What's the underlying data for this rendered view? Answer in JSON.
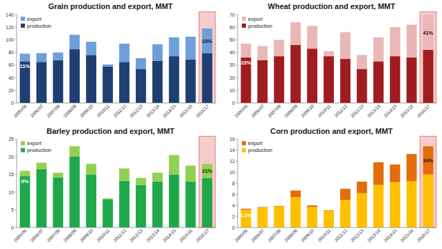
{
  "chart_data": [
    {
      "type": "bar",
      "title": "Grain production and export, MMT",
      "stacked": true,
      "grid": false,
      "legend": "top-left",
      "categories": [
        "2005/06",
        "2006/07",
        "2007/08",
        "2008/09",
        "2009/10",
        "2010/11",
        "2011/12",
        "2012/13",
        "2013/14",
        "2014/15",
        "2015/16",
        "2016/17"
      ],
      "series": [
        {
          "name": "production",
          "color": "#1f3f73",
          "values": [
            66,
            65,
            68,
            85,
            76,
            58,
            65,
            54,
            67,
            74,
            69,
            79
          ]
        },
        {
          "name": "export",
          "color": "#6e9fd8",
          "values": [
            12,
            14,
            12,
            23,
            21,
            3,
            29,
            17,
            26,
            30,
            36,
            39
          ]
        }
      ],
      "ylim": [
        0,
        140
      ],
      "yticks": [
        0,
        20,
        40,
        60,
        80,
        100,
        120,
        140
      ],
      "annotations": [
        {
          "text": "11%",
          "x": "2005/06"
        },
        {
          "text": "33%",
          "x": "2016/17"
        }
      ]
    },
    {
      "type": "bar",
      "title": "Wheat production and export, MMT",
      "stacked": true,
      "grid": false,
      "legend": "top-left",
      "categories": [
        "2005/06",
        "2006/07",
        "2007/08",
        "2008/09",
        "2009/10",
        "2010/11",
        "2011/12",
        "2012/13",
        "2013/14",
        "2014/15",
        "2015/16",
        "2016/17"
      ],
      "series": [
        {
          "name": "production",
          "color": "#a11d1d",
          "values": [
            36,
            34,
            37,
            46,
            43,
            37,
            35,
            27,
            33,
            37,
            36,
            42
          ]
        },
        {
          "name": "export",
          "color": "#e9b7b7",
          "values": [
            11,
            11,
            13,
            18,
            18,
            4,
            21,
            11,
            19,
            23,
            26,
            28
          ]
        }
      ],
      "ylim": [
        0,
        70
      ],
      "yticks": [
        0,
        10,
        20,
        30,
        40,
        50,
        60,
        70
      ],
      "annotations": [
        {
          "text": "23%",
          "x": "2005/06"
        },
        {
          "text": "41%",
          "x": "2016/17"
        }
      ]
    },
    {
      "type": "bar",
      "title": "Barley production and export, MMT",
      "stacked": true,
      "grid": false,
      "legend": "top-left",
      "categories": [
        "2005/06",
        "2006/07",
        "2007/08",
        "2008/09",
        "2009/10",
        "2010/11",
        "2011/12",
        "2012/13",
        "2013/14",
        "2014/15",
        "2015/16",
        "2016/17"
      ],
      "series": [
        {
          "name": "production",
          "color": "#1ea84a",
          "values": [
            14.5,
            16.5,
            14.2,
            20,
            15,
            8,
            13.2,
            12,
            13,
            15,
            13,
            14
          ]
        },
        {
          "name": "export",
          "color": "#92d050",
          "values": [
            1.5,
            1.8,
            1.3,
            3,
            3,
            0.2,
            3.5,
            2,
            2.5,
            5.5,
            4.5,
            4
          ]
        }
      ],
      "ylim": [
        0,
        25
      ],
      "yticks": [
        0,
        5,
        10,
        15,
        20,
        25
      ],
      "annotations": [
        {
          "text": "9%",
          "x": "2005/06"
        },
        {
          "text": "21%",
          "x": "2016/17"
        }
      ]
    },
    {
      "type": "bar",
      "title": "Corn production and export, MMT",
      "stacked": true,
      "grid": false,
      "legend": "top-left",
      "categories": [
        "2005/06",
        "2006/07",
        "2007/08",
        "2008/09",
        "2009/10",
        "2010/11",
        "2011/12",
        "2012/13",
        "2013/14",
        "2014/15",
        "2015/16",
        "2016/17"
      ],
      "series": [
        {
          "name": "production",
          "color": "#ffc000",
          "values": [
            3.2,
            3.6,
            3.8,
            5.5,
            3.7,
            3,
            5,
            6.2,
            7.7,
            8.2,
            8.4,
            9.6
          ]
        },
        {
          "name": "export",
          "color": "#e46c0a",
          "values": [
            0.2,
            0.1,
            0.1,
            1.2,
            0.3,
            0.1,
            2,
            2.1,
            4.1,
            3.2,
            4.9,
            5.1
          ]
        }
      ],
      "ylim": [
        0,
        16
      ],
      "yticks": [
        0,
        2,
        4,
        6,
        8,
        10,
        12,
        14,
        16
      ],
      "annotations": [
        {
          "text": "1.2%",
          "x": "2005/06"
        },
        {
          "text": "34%",
          "x": "2016/17"
        }
      ]
    }
  ]
}
